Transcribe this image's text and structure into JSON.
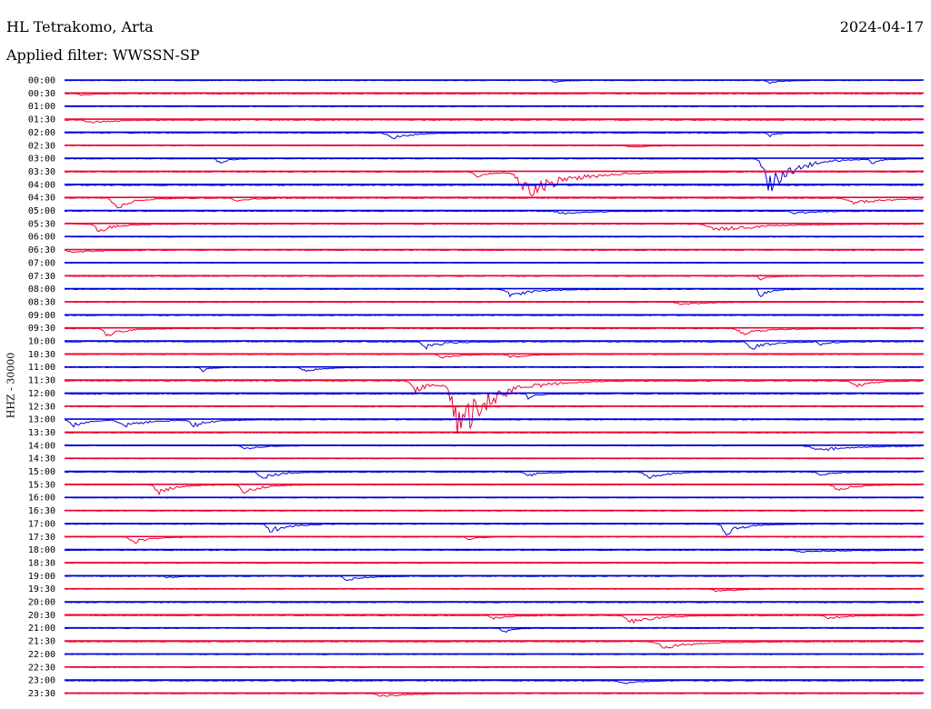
{
  "header": {
    "station": "HL Tetrakomo, Arta",
    "date": "2024-04-17",
    "filter": "Applied filter: WWSSN-SP",
    "channel": "HHZ - 30000"
  },
  "colors": {
    "blue": "#0000dd",
    "red": "#ee0033"
  },
  "chart_data": {
    "type": "line",
    "title": "HL Tetrakomo, Arta",
    "subtitle": "Applied filter: WWSSN-SP",
    "ylabel": "HHZ - 30000",
    "row_labels": [
      "00:00",
      "00:30",
      "01:00",
      "01:30",
      "02:00",
      "02:30",
      "03:00",
      "03:30",
      "04:00",
      "04:30",
      "05:00",
      "05:30",
      "06:00",
      "06:30",
      "07:00",
      "07:30",
      "08:00",
      "08:30",
      "09:00",
      "09:30",
      "10:00",
      "10:30",
      "11:00",
      "11:30",
      "12:00",
      "12:30",
      "13:00",
      "13:30",
      "14:00",
      "14:30",
      "15:00",
      "15:30",
      "16:00",
      "16:30",
      "17:00",
      "17:30",
      "18:00",
      "18:30",
      "19:00",
      "19:30",
      "20:00",
      "20:30",
      "21:00",
      "21:30",
      "22:00",
      "22:30",
      "23:00",
      "23:30"
    ],
    "row_colors": [
      "blue",
      "red"
    ],
    "trace_noise": [
      0.8,
      1.2,
      0.8,
      1.4,
      1.2,
      0.8,
      0.8,
      1.0,
      1.4,
      1.2,
      1.2,
      1.0,
      0.7,
      1.0,
      0.6,
      0.9,
      0.9,
      0.8,
      1.0,
      1.2,
      1.4,
      0.8,
      0.8,
      1.4,
      1.4,
      0.9,
      1.0,
      1.0,
      0.8,
      0.7,
      1.2,
      0.8,
      0.7,
      0.7,
      1.0,
      0.8,
      1.0,
      0.8,
      1.0,
      0.7,
      1.1,
      1.2,
      0.8,
      1.3,
      0.8,
      0.7,
      1.2,
      0.9
    ],
    "events": [
      {
        "row": 0,
        "t": 0.57,
        "amp": 3,
        "dur": 0.01
      },
      {
        "row": 0,
        "t": 0.82,
        "amp": 4,
        "dur": 0.012
      },
      {
        "row": 1,
        "t": 0.02,
        "amp": 2,
        "dur": 0.01
      },
      {
        "row": 3,
        "t": 0.03,
        "amp": 4,
        "dur": 0.03
      },
      {
        "row": 4,
        "t": 0.38,
        "amp": 8,
        "dur": 0.025
      },
      {
        "row": 4,
        "t": 0.82,
        "amp": 5,
        "dur": 0.01
      },
      {
        "row": 5,
        "t": 0.66,
        "amp": 2,
        "dur": 0.02
      },
      {
        "row": 6,
        "t": 0.18,
        "amp": 7,
        "dur": 0.01
      },
      {
        "row": 6,
        "t": 0.82,
        "amp": 45,
        "dur": 0.03
      },
      {
        "row": 6,
        "t": 0.94,
        "amp": 6,
        "dur": 0.01
      },
      {
        "row": 7,
        "t": 0.48,
        "amp": 6,
        "dur": 0.02
      },
      {
        "row": 7,
        "t": 0.54,
        "amp": 30,
        "dur": 0.05
      },
      {
        "row": 9,
        "t": 0.06,
        "amp": 14,
        "dur": 0.02
      },
      {
        "row": 9,
        "t": 0.2,
        "amp": 4,
        "dur": 0.02
      },
      {
        "row": 9,
        "t": 0.92,
        "amp": 8,
        "dur": 0.04
      },
      {
        "row": 10,
        "t": 0.58,
        "amp": 4,
        "dur": 0.03
      },
      {
        "row": 10,
        "t": 0.85,
        "amp": 4,
        "dur": 0.02
      },
      {
        "row": 11,
        "t": 0.04,
        "amp": 10,
        "dur": 0.02
      },
      {
        "row": 11,
        "t": 0.76,
        "amp": 10,
        "dur": 0.05
      },
      {
        "row": 13,
        "t": 0.01,
        "amp": 3,
        "dur": 0.03
      },
      {
        "row": 15,
        "t": 0.81,
        "amp": 5,
        "dur": 0.01
      },
      {
        "row": 16,
        "t": 0.52,
        "amp": 9,
        "dur": 0.03
      },
      {
        "row": 16,
        "t": 0.81,
        "amp": 11,
        "dur": 0.01
      },
      {
        "row": 17,
        "t": 0.72,
        "amp": 3,
        "dur": 0.03
      },
      {
        "row": 19,
        "t": 0.05,
        "amp": 10,
        "dur": 0.02
      },
      {
        "row": 19,
        "t": 0.79,
        "amp": 7,
        "dur": 0.03
      },
      {
        "row": 20,
        "t": 0.42,
        "amp": 9,
        "dur": 0.02
      },
      {
        "row": 20,
        "t": 0.8,
        "amp": 11,
        "dur": 0.02
      },
      {
        "row": 20,
        "t": 0.88,
        "amp": 5,
        "dur": 0.01
      },
      {
        "row": 21,
        "t": 0.44,
        "amp": 5,
        "dur": 0.02
      },
      {
        "row": 21,
        "t": 0.52,
        "amp": 4,
        "dur": 0.02
      },
      {
        "row": 22,
        "t": 0.16,
        "amp": 5,
        "dur": 0.01
      },
      {
        "row": 22,
        "t": 0.28,
        "amp": 6,
        "dur": 0.02
      },
      {
        "row": 23,
        "t": 0.41,
        "amp": 13,
        "dur": 0.03
      },
      {
        "row": 23,
        "t": 0.46,
        "amp": 70,
        "dur": 0.04
      },
      {
        "row": 23,
        "t": 0.92,
        "amp": 8,
        "dur": 0.02
      },
      {
        "row": 24,
        "t": 0.54,
        "amp": 6,
        "dur": 0.01
      },
      {
        "row": 26,
        "t": 0.01,
        "amp": 8,
        "dur": 0.02
      },
      {
        "row": 26,
        "t": 0.07,
        "amp": 9,
        "dur": 0.03
      },
      {
        "row": 26,
        "t": 0.15,
        "amp": 9,
        "dur": 0.02
      },
      {
        "row": 28,
        "t": 0.21,
        "amp": 5,
        "dur": 0.02
      },
      {
        "row": 28,
        "t": 0.88,
        "amp": 6,
        "dur": 0.05
      },
      {
        "row": 30,
        "t": 0.23,
        "amp": 9,
        "dur": 0.02
      },
      {
        "row": 30,
        "t": 0.54,
        "amp": 5,
        "dur": 0.02
      },
      {
        "row": 30,
        "t": 0.68,
        "amp": 9,
        "dur": 0.02
      },
      {
        "row": 30,
        "t": 0.88,
        "amp": 4,
        "dur": 0.02
      },
      {
        "row": 31,
        "t": 0.11,
        "amp": 11,
        "dur": 0.02
      },
      {
        "row": 31,
        "t": 0.21,
        "amp": 12,
        "dur": 0.02
      },
      {
        "row": 31,
        "t": 0.9,
        "amp": 8,
        "dur": 0.02
      },
      {
        "row": 34,
        "t": 0.24,
        "amp": 11,
        "dur": 0.02
      },
      {
        "row": 34,
        "t": 0.77,
        "amp": 14,
        "dur": 0.02
      },
      {
        "row": 35,
        "t": 0.08,
        "amp": 8,
        "dur": 0.02
      },
      {
        "row": 35,
        "t": 0.47,
        "amp": 4,
        "dur": 0.01
      },
      {
        "row": 36,
        "t": 0.86,
        "amp": 3,
        "dur": 0.04
      },
      {
        "row": 38,
        "t": 0.12,
        "amp": 3,
        "dur": 0.01
      },
      {
        "row": 38,
        "t": 0.33,
        "amp": 6,
        "dur": 0.02
      },
      {
        "row": 39,
        "t": 0.76,
        "amp": 4,
        "dur": 0.02
      },
      {
        "row": 41,
        "t": 0.5,
        "amp": 4,
        "dur": 0.02
      },
      {
        "row": 41,
        "t": 0.66,
        "amp": 10,
        "dur": 0.03
      },
      {
        "row": 41,
        "t": 0.89,
        "amp": 4,
        "dur": 0.02
      },
      {
        "row": 42,
        "t": 0.51,
        "amp": 7,
        "dur": 0.01
      },
      {
        "row": 43,
        "t": 0.7,
        "amp": 8,
        "dur": 0.04
      },
      {
        "row": 46,
        "t": 0.65,
        "amp": 4,
        "dur": 0.02
      },
      {
        "row": 47,
        "t": 0.37,
        "amp": 4,
        "dur": 0.03
      }
    ]
  }
}
